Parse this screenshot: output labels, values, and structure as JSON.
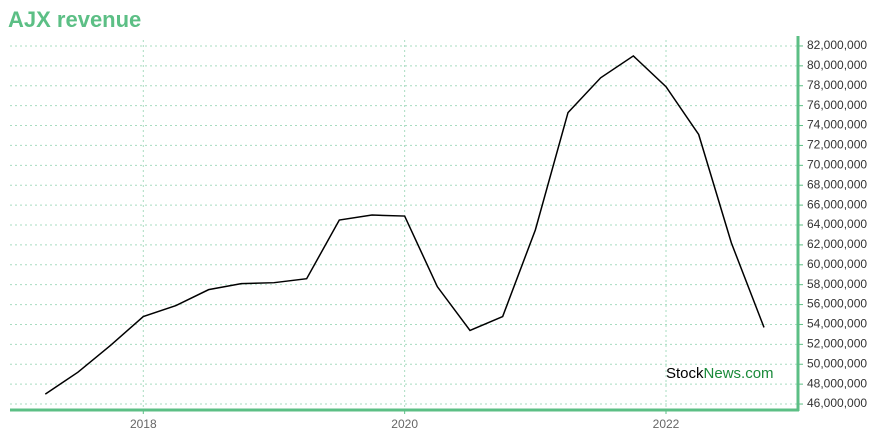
{
  "chart_data": {
    "type": "line",
    "title": "AJX revenue",
    "watermark": [
      "Stock",
      "News.com"
    ],
    "x": [
      2017.25,
      2017.5,
      2017.75,
      2018,
      2018.25,
      2018.5,
      2018.75,
      2019,
      2019.25,
      2019.5,
      2019.75,
      2020,
      2020.25,
      2020.5,
      2020.75,
      2021,
      2021.25,
      2021.5,
      2021.75,
      2022,
      2022.25,
      2022.5,
      2022.75
    ],
    "series": [
      {
        "name": "AJX revenue",
        "color": "#000000",
        "values": [
          47000000,
          49200000,
          51900000,
          54800000,
          55900000,
          57500000,
          58100000,
          58200000,
          58600000,
          64500000,
          65000000,
          64900000,
          57800000,
          53400000,
          54800000,
          63500000,
          75300000,
          78800000,
          81000000,
          77900000,
          73100000,
          62200000,
          53700000
        ]
      }
    ],
    "xlim": [
      2016.98,
      2023.01
    ],
    "xticks": [
      2018,
      2020,
      2022
    ],
    "ylim": [
      45400000,
      82600000
    ],
    "yticks": [
      {
        "value": 46000000,
        "label": "46,000,000"
      },
      {
        "value": 48000000,
        "label": "48,000,000"
      },
      {
        "value": 50000000,
        "label": "50,000,000"
      },
      {
        "value": 52000000,
        "label": "52,000,000"
      },
      {
        "value": 54000000,
        "label": "54,000,000"
      },
      {
        "value": 56000000,
        "label": "56,000,000"
      },
      {
        "value": 58000000,
        "label": "58,000,000"
      },
      {
        "value": 60000000,
        "label": "60,000,000"
      },
      {
        "value": 62000000,
        "label": "62,000,000"
      },
      {
        "value": 64000000,
        "label": "64,000,000"
      },
      {
        "value": 66000000,
        "label": "66,000,000"
      },
      {
        "value": 68000000,
        "label": "68,000,000"
      },
      {
        "value": 70000000,
        "label": "70,000,000"
      },
      {
        "value": 72000000,
        "label": "72,000,000"
      },
      {
        "value": 74000000,
        "label": "74,000,000"
      },
      {
        "value": 76000000,
        "label": "76,000,000"
      },
      {
        "value": 78000000,
        "label": "78,000,000"
      },
      {
        "value": 80000000,
        "label": "80,000,000"
      },
      {
        "value": 82000000,
        "label": "82,000,000"
      }
    ],
    "grid": true,
    "axis_color": "#5cbf85"
  }
}
